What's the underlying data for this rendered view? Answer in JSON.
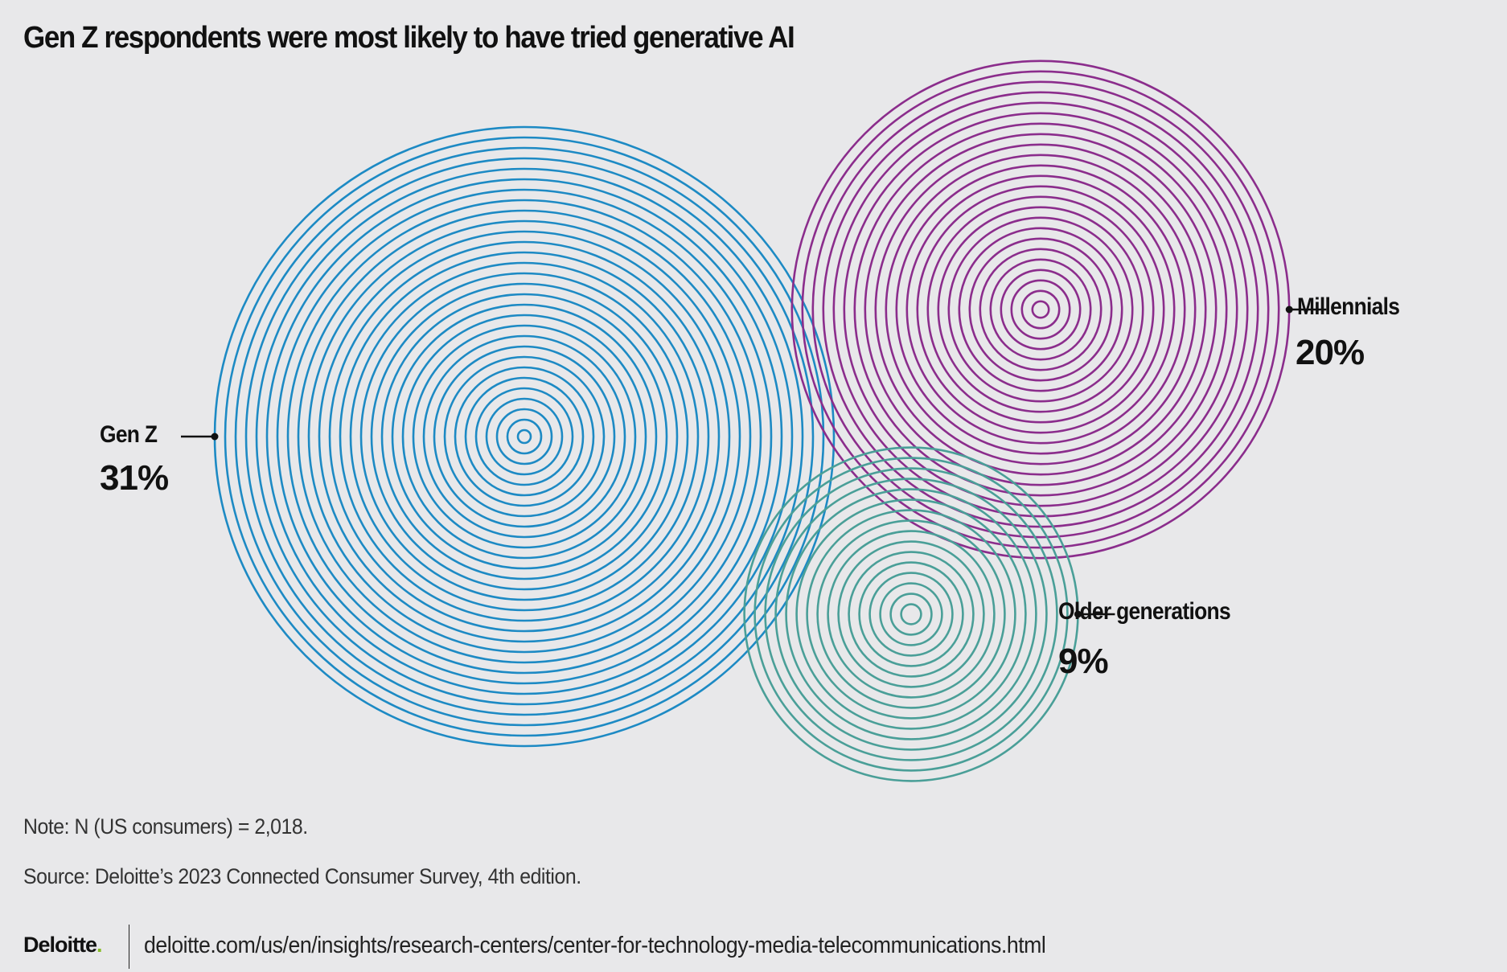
{
  "chart_data": {
    "type": "bubble",
    "title": "Gen Z respondents were most likely to have tried generative AI",
    "series": [
      {
        "name": "Gen Z",
        "value": 31,
        "label": "31%",
        "color": "#1d8ac4"
      },
      {
        "name": "Millennials",
        "value": 20,
        "label": "20%",
        "color": "#8b2d8c"
      },
      {
        "name": "Older generations",
        "value": 9,
        "label": "9%",
        "color": "#4a9f98"
      }
    ],
    "unit": "%"
  },
  "notes": {
    "note": "Note: N (US consumers) = 2,018.",
    "source": "Source: Deloitte’s 2023 Connected Consumer Survey, 4th edition."
  },
  "footer": {
    "logo": "Deloitte",
    "url": "deloitte.com/us/en/insights/research-centers/center-for-technology-media-telecommunications.html"
  }
}
